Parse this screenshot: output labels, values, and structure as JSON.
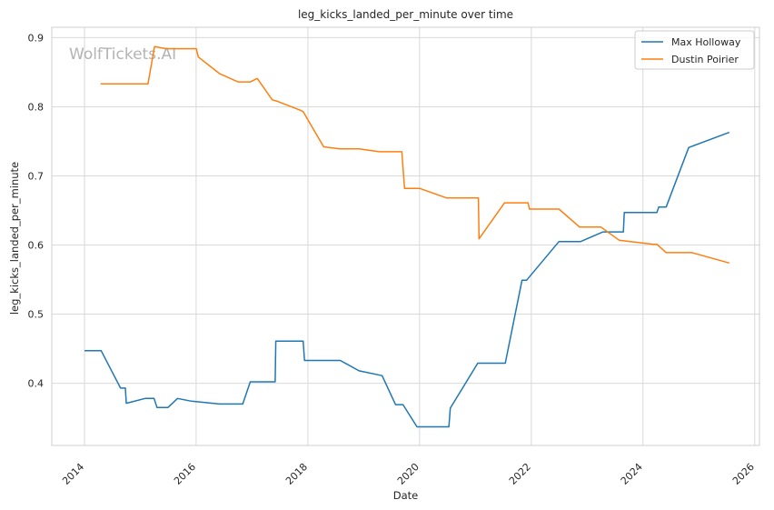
{
  "chart_data": {
    "type": "line",
    "title": "leg_kicks_landed_per_minute over time",
    "xlabel": "Date",
    "ylabel": "leg_kicks_landed_per_minute",
    "watermark": "WolfTickets.AI",
    "x_ticks": [
      "2014",
      "2016",
      "2018",
      "2020",
      "2022",
      "2024",
      "2026"
    ],
    "y_ticks": [
      "0.4",
      "0.5",
      "0.6",
      "0.7",
      "0.8",
      "0.9"
    ],
    "xlim": [
      "2013-06-01",
      "2026-02-01"
    ],
    "ylim": [
      0.31,
      0.915
    ],
    "grid": true,
    "legend_position": "top-right",
    "series": [
      {
        "name": "Max Holloway",
        "color": "#1f77b4",
        "points": [
          [
            "2014-01-01",
            0.447
          ],
          [
            "2014-04-20",
            0.447
          ],
          [
            "2014-08-25",
            0.393
          ],
          [
            "2014-09-25",
            0.393
          ],
          [
            "2014-10-01",
            0.371
          ],
          [
            "2015-02-01",
            0.378
          ],
          [
            "2015-04-01",
            0.378
          ],
          [
            "2015-04-20",
            0.365
          ],
          [
            "2015-07-01",
            0.365
          ],
          [
            "2015-09-01",
            0.378
          ],
          [
            "2015-12-01",
            0.374
          ],
          [
            "2016-06-01",
            0.37
          ],
          [
            "2016-11-01",
            0.37
          ],
          [
            "2016-12-20",
            0.402
          ],
          [
            "2017-06-01",
            0.402
          ],
          [
            "2017-06-05",
            0.461
          ],
          [
            "2017-12-01",
            0.461
          ],
          [
            "2017-12-10",
            0.433
          ],
          [
            "2018-08-01",
            0.433
          ],
          [
            "2018-12-01",
            0.418
          ],
          [
            "2019-05-01",
            0.411
          ],
          [
            "2019-07-28",
            0.369
          ],
          [
            "2019-09-15",
            0.369
          ],
          [
            "2019-12-15",
            0.337
          ],
          [
            "2020-07-11",
            0.337
          ],
          [
            "2020-07-20",
            0.364
          ],
          [
            "2021-01-16",
            0.429
          ],
          [
            "2021-07-15",
            0.429
          ],
          [
            "2021-11-01",
            0.549
          ],
          [
            "2021-12-01",
            0.549
          ],
          [
            "2022-07-01",
            0.605
          ],
          [
            "2022-11-20",
            0.605
          ],
          [
            "2023-04-15",
            0.619
          ],
          [
            "2023-08-26",
            0.619
          ],
          [
            "2023-09-01",
            0.647
          ],
          [
            "2024-04-01",
            0.647
          ],
          [
            "2024-04-13",
            0.655
          ],
          [
            "2024-06-01",
            0.655
          ],
          [
            "2024-10-26",
            0.741
          ],
          [
            "2025-07-19",
            0.763
          ]
        ]
      },
      {
        "name": "Dustin Poirier",
        "color": "#ff7f0e",
        "points": [
          [
            "2014-04-16",
            0.833
          ],
          [
            "2015-02-20",
            0.833
          ],
          [
            "2015-04-04",
            0.887
          ],
          [
            "2015-06-20",
            0.884
          ],
          [
            "2016-01-02",
            0.884
          ],
          [
            "2016-01-15",
            0.872
          ],
          [
            "2016-06-01",
            0.848
          ],
          [
            "2016-10-01",
            0.836
          ],
          [
            "2016-12-20",
            0.836
          ],
          [
            "2017-02-04",
            0.841
          ],
          [
            "2017-05-13",
            0.81
          ],
          [
            "2017-06-15",
            0.808
          ],
          [
            "2017-11-11",
            0.795
          ],
          [
            "2017-12-01",
            0.793
          ],
          [
            "2018-04-14",
            0.742
          ],
          [
            "2018-07-28",
            0.739
          ],
          [
            "2018-12-01",
            0.739
          ],
          [
            "2019-04-13",
            0.735
          ],
          [
            "2019-09-07",
            0.735
          ],
          [
            "2019-09-25",
            0.682
          ],
          [
            "2020-01-01",
            0.682
          ],
          [
            "2020-06-27",
            0.668
          ],
          [
            "2021-01-20",
            0.668
          ],
          [
            "2021-01-24",
            0.609
          ],
          [
            "2021-07-10",
            0.661
          ],
          [
            "2021-12-11",
            0.661
          ],
          [
            "2021-12-20",
            0.652
          ],
          [
            "2022-07-01",
            0.652
          ],
          [
            "2022-11-12",
            0.626
          ],
          [
            "2023-04-01",
            0.626
          ],
          [
            "2023-07-29",
            0.607
          ],
          [
            "2024-03-09",
            0.601
          ],
          [
            "2024-04-01",
            0.601
          ],
          [
            "2024-06-01",
            0.589
          ],
          [
            "2024-11-16",
            0.589
          ],
          [
            "2025-07-19",
            0.574
          ]
        ]
      }
    ]
  }
}
